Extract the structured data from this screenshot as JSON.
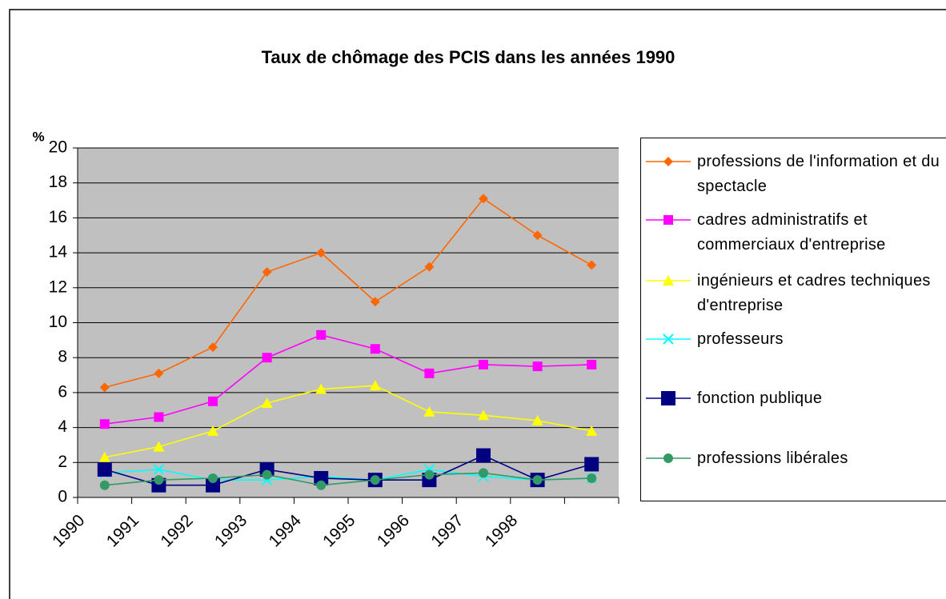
{
  "chart_data": {
    "type": "line",
    "title": "Taux de chômage des PCIS dans les années 1990",
    "y_label": "%",
    "categories": [
      "1990",
      "1991",
      "1992",
      "1993",
      "1994",
      "1995",
      "1996",
      "1997",
      "1998",
      null
    ],
    "ylim": [
      0,
      20
    ],
    "yticks": [
      0,
      2,
      4,
      6,
      8,
      10,
      12,
      14,
      16,
      18,
      20
    ],
    "grid": true,
    "legend": "right",
    "series": [
      {
        "name": "professions de l'information et du spectacle",
        "color": "#ff6600",
        "marker": "diamond",
        "values": [
          6.3,
          7.1,
          8.6,
          12.9,
          14.0,
          11.2,
          13.2,
          17.1,
          15.0,
          13.3
        ]
      },
      {
        "name": "cadres administratifs et commerciaux d'entreprise",
        "color": "#ff00ff",
        "marker": "square",
        "values": [
          4.2,
          4.6,
          5.5,
          8.0,
          9.3,
          8.5,
          7.1,
          7.6,
          7.5,
          7.6
        ]
      },
      {
        "name": "ingénieurs et cadres techniques d'entreprise",
        "color": "#ffff00",
        "marker": "triangle",
        "values": [
          2.3,
          2.9,
          3.8,
          5.4,
          6.2,
          6.4,
          4.9,
          4.7,
          4.4,
          3.8
        ]
      },
      {
        "name": "professeurs",
        "color": "#00ffff",
        "marker": "x",
        "values": [
          1.4,
          1.6,
          1.0,
          1.0,
          1.2,
          1.0,
          1.6,
          1.2,
          1.0,
          1.1
        ]
      },
      {
        "name": "fonction publique",
        "color": "#000080",
        "marker": "bigsquare",
        "values": [
          1.6,
          0.7,
          0.7,
          1.6,
          1.1,
          1.0,
          1.0,
          2.4,
          1.0,
          1.9
        ]
      },
      {
        "name": "professions libérales",
        "color": "#339966",
        "marker": "circle",
        "values": [
          0.7,
          1.0,
          1.1,
          1.3,
          0.7,
          1.0,
          1.3,
          1.4,
          1.0,
          1.1
        ]
      }
    ]
  }
}
